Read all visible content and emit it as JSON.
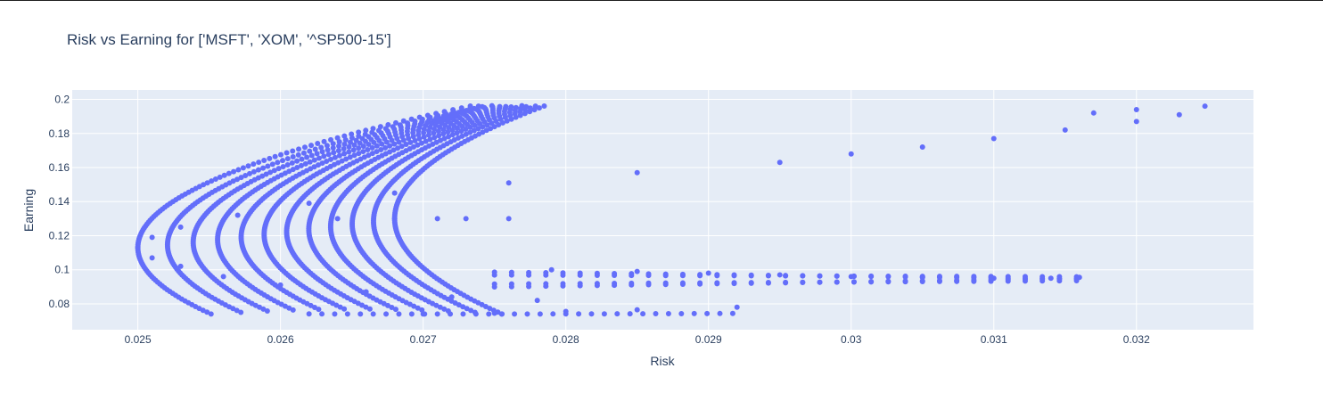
{
  "chart_data": {
    "type": "scatter",
    "title": "Risk vs Earning for ['MSFT', 'XOM', '^SP500-15']",
    "xlabel": "Risk",
    "ylabel": "Earning",
    "xlim": [
      0.02454,
      0.03282
    ],
    "ylim": [
      0.0648,
      0.2055
    ],
    "x_ticks": [
      0.025,
      0.026,
      0.027,
      0.028,
      0.029,
      0.03,
      0.031,
      0.032
    ],
    "x_tick_labels": [
      "0.025",
      "0.026",
      "0.027",
      "0.028",
      "0.029",
      "0.03",
      "0.031",
      "0.032"
    ],
    "y_ticks": [
      0.08,
      0.1,
      0.12,
      0.14,
      0.16,
      0.18,
      0.2
    ],
    "y_tick_labels": [
      "0.08",
      "0.1",
      "0.12",
      "0.14",
      "0.16",
      "0.18",
      "0.2"
    ],
    "grid": true,
    "legend": "none",
    "colors": {
      "marker": "#636efa",
      "plot_background": "#e5ecf6",
      "grid": "#ffffff",
      "text": "#2a3f5f"
    },
    "series": [
      {
        "sampled_points": [
          [
            0.025,
            0.113
          ],
          [
            0.0251,
            0.107
          ],
          [
            0.0251,
            0.119
          ],
          [
            0.0253,
            0.102
          ],
          [
            0.0253,
            0.125
          ],
          [
            0.0256,
            0.096
          ],
          [
            0.0257,
            0.132
          ],
          [
            0.026,
            0.091
          ],
          [
            0.0262,
            0.139
          ],
          [
            0.0266,
            0.087
          ],
          [
            0.0268,
            0.145
          ],
          [
            0.0272,
            0.084
          ],
          [
            0.0276,
            0.151
          ],
          [
            0.0278,
            0.082
          ],
          [
            0.0285,
            0.157
          ],
          [
            0.0295,
            0.163
          ],
          [
            0.03,
            0.168
          ],
          [
            0.0305,
            0.172
          ],
          [
            0.031,
            0.177
          ],
          [
            0.0315,
            0.182
          ],
          [
            0.032,
            0.187
          ],
          [
            0.0323,
            0.191
          ],
          [
            0.03248,
            0.196
          ],
          [
            0.032,
            0.194
          ],
          [
            0.0317,
            0.192
          ],
          [
            0.027,
            0.074
          ],
          [
            0.0275,
            0.0745
          ],
          [
            0.028,
            0.0755
          ],
          [
            0.0285,
            0.0765
          ],
          [
            0.0292,
            0.078
          ],
          [
            0.0264,
            0.13
          ],
          [
            0.0268,
            0.13
          ],
          [
            0.0271,
            0.13
          ],
          [
            0.0273,
            0.13
          ],
          [
            0.0276,
            0.13
          ],
          [
            0.0279,
            0.1
          ],
          [
            0.0285,
            0.099
          ],
          [
            0.029,
            0.098
          ],
          [
            0.0295,
            0.097
          ],
          [
            0.03,
            0.096
          ],
          [
            0.0305,
            0.0955
          ],
          [
            0.031,
            0.095
          ],
          [
            0.0314,
            0.095
          ],
          [
            0.0316,
            0.0955
          ]
        ]
      }
    ]
  }
}
